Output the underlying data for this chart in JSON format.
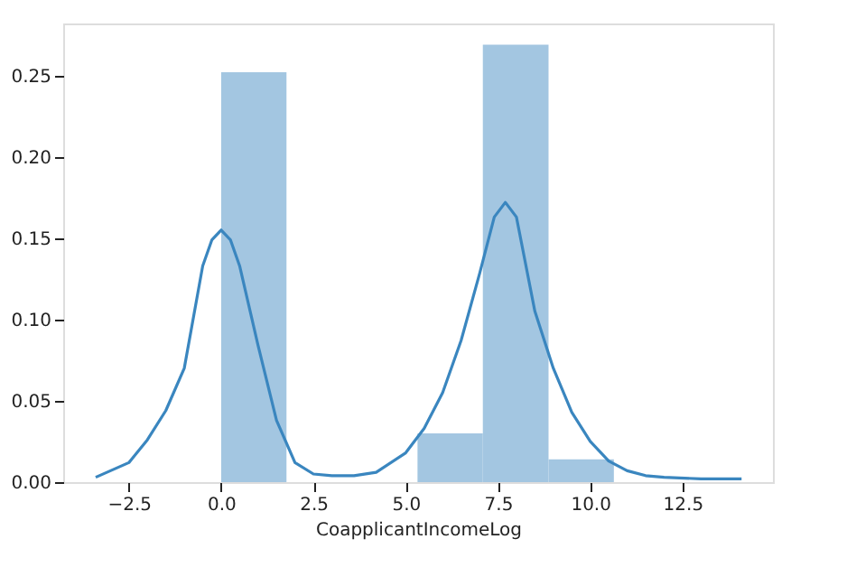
{
  "chart_data": {
    "type": "histogram",
    "xlabel": "CoapplicantIncomeLog",
    "bins": [
      0,
      1.77,
      3.55,
      5.32,
      7.09,
      8.87,
      10.64
    ],
    "values": [
      0.252,
      0,
      0,
      0.03,
      0.269,
      0.014
    ],
    "color": "#a3c6e1",
    "series": [
      {
        "type": "line",
        "color": "#3a86bf",
        "line_style": "solid",
        "x": [
          -3.4,
          -2.5,
          -2.0,
          -1.5,
          -1.0,
          -0.5,
          -0.25,
          0,
          0.25,
          0.5,
          1.0,
          1.5,
          2.0,
          2.5,
          3.0,
          3.6,
          4.2,
          5.0,
          5.5,
          6.0,
          6.5,
          7.0,
          7.4,
          7.7,
          8.0,
          8.5,
          9.0,
          9.5,
          10.0,
          10.5,
          11.0,
          11.5,
          12.0,
          13.0,
          14.1
        ],
        "values": [
          0.003,
          0.012,
          0.026,
          0.044,
          0.07,
          0.133,
          0.149,
          0.155,
          0.149,
          0.133,
          0.084,
          0.038,
          0.012,
          0.005,
          0.004,
          0.004,
          0.006,
          0.018,
          0.033,
          0.055,
          0.087,
          0.128,
          0.163,
          0.172,
          0.163,
          0.105,
          0.07,
          0.043,
          0.025,
          0.013,
          0.007,
          0.004,
          0.003,
          0.002,
          0.002
        ]
      }
    ],
    "xlim": [
      -4.28,
      14.95
    ],
    "xticks": [
      -2.5,
      {
        "value": 0,
        "label": "0.0"
      },
      2.5,
      {
        "value": 5,
        "label": "5.0"
      },
      7.5,
      {
        "value": 10,
        "label": "10.0"
      },
      12.5
    ],
    "ylim": [
      0,
      0.282
    ],
    "yticks": [
      {
        "value": 0,
        "label": "0.00"
      },
      0.05,
      {
        "value": 0.1,
        "label": "0.10"
      },
      0.15,
      {
        "value": 0.2,
        "label": "0.20"
      },
      0.25
    ],
    "grid": false
  }
}
